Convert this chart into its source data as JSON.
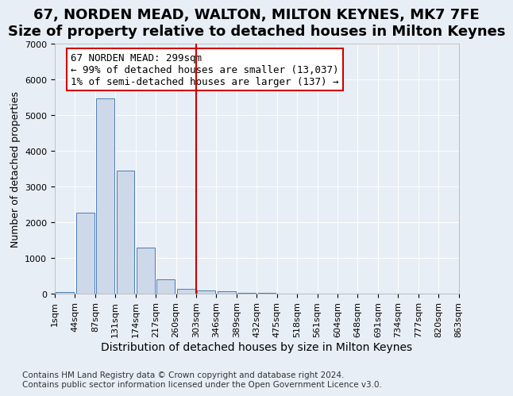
{
  "title": "67, NORDEN MEAD, WALTON, MILTON KEYNES, MK7 7FE",
  "subtitle": "Size of property relative to detached houses in Milton Keynes",
  "xlabel": "Distribution of detached houses by size in Milton Keynes",
  "ylabel": "Number of detached properties",
  "footer_line1": "Contains HM Land Registry data © Crown copyright and database right 2024.",
  "footer_line2": "Contains public sector information licensed under the Open Government Licence v3.0.",
  "bin_labels": [
    "1sqm",
    "44sqm",
    "87sqm",
    "131sqm",
    "174sqm",
    "217sqm",
    "260sqm",
    "303sqm",
    "346sqm",
    "389sqm",
    "432sqm",
    "475sqm",
    "518sqm",
    "561sqm",
    "604sqm",
    "648sqm",
    "691sqm",
    "734sqm",
    "777sqm",
    "820sqm",
    "863sqm"
  ],
  "bar_heights": [
    30,
    2270,
    5460,
    3430,
    1290,
    390,
    120,
    90,
    50,
    20,
    5,
    2,
    1,
    0,
    0,
    0,
    0,
    0,
    0,
    0
  ],
  "bar_color": "#cdd9e8",
  "bar_edge_color": "#4a7cb5",
  "annotation_title": "67 NORDEN MEAD: 299sqm",
  "annotation_line1": "← 99% of detached houses are smaller (13,037)",
  "annotation_line2": "1% of semi-detached houses are larger (137) →",
  "annotation_box_color": "#ffffff",
  "annotation_box_edge_color": "#cc0000",
  "vline_color": "#cc0000",
  "background_color": "#e8eef5",
  "plot_background_color": "#e8eef5",
  "ylim": [
    0,
    7000
  ],
  "yticks": [
    0,
    1000,
    2000,
    3000,
    4000,
    5000,
    6000,
    7000
  ],
  "title_fontsize": 13,
  "ylabel_fontsize": 9,
  "tick_fontsize": 8,
  "annotation_fontsize": 9,
  "footer_fontsize": 7.5
}
